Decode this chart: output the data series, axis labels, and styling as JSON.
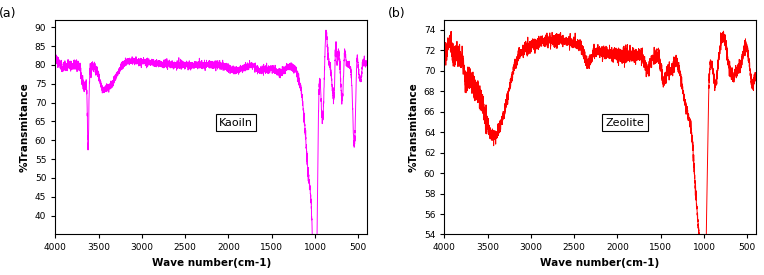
{
  "title_a": "(a)",
  "title_b": "(b)",
  "xlabel": "Wave number(cm-1)",
  "ylabel": "%Transmitance",
  "label_a": "Kaoiln",
  "label_b": "Zeolite",
  "color_a": "#FF00FF",
  "color_b": "#FF0000",
  "xlim": [
    4000,
    400
  ],
  "xticks": [
    4000,
    3500,
    3000,
    2500,
    2000,
    1500,
    1000,
    500
  ],
  "ylim_a": [
    35,
    92
  ],
  "yticks_a": [
    40,
    45,
    50,
    55,
    60,
    65,
    70,
    75,
    80,
    85,
    90
  ],
  "ylim_b": [
    54,
    75
  ],
  "yticks_b": [
    54,
    56,
    58,
    60,
    62,
    64,
    66,
    68,
    70,
    72,
    74
  ]
}
